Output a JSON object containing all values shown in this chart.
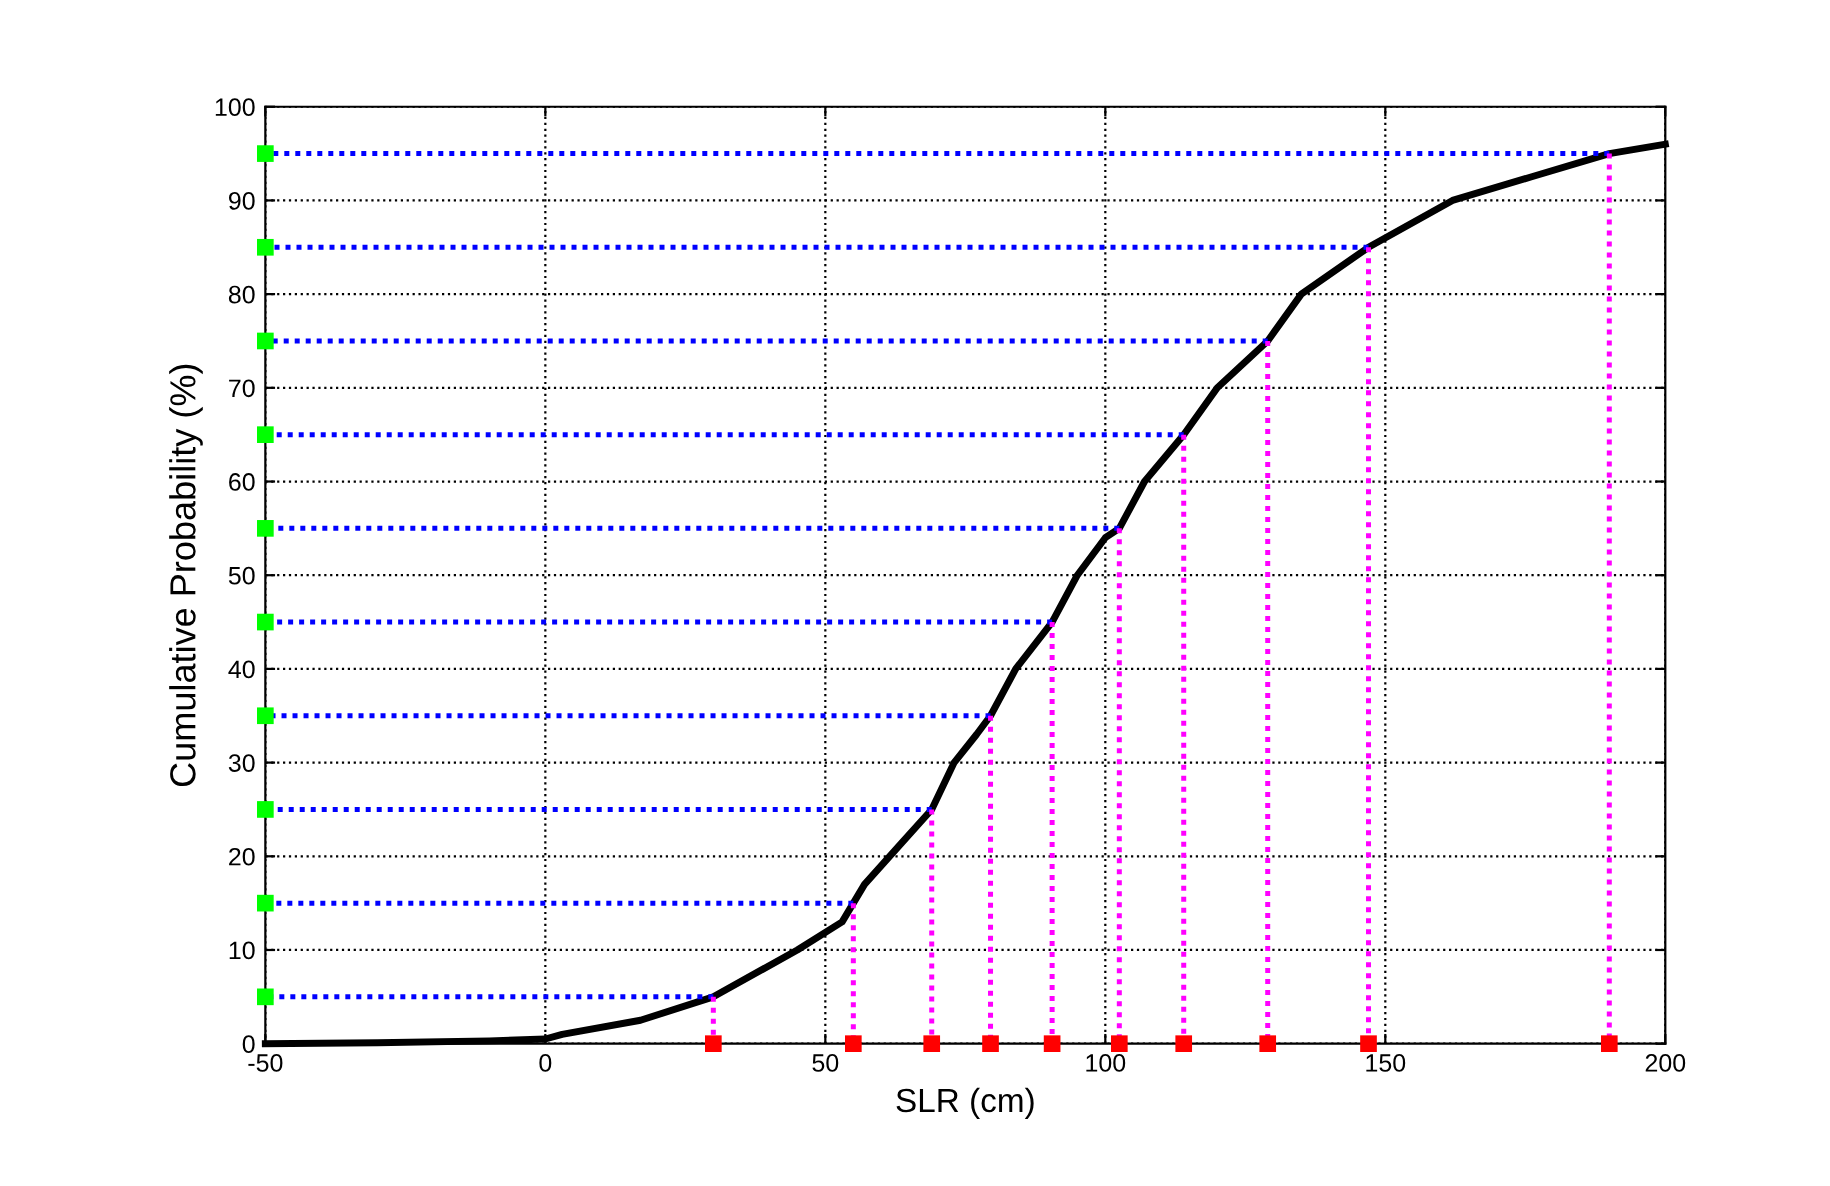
{
  "chart_data": {
    "type": "line",
    "xlabel": "SLR (cm)",
    "ylabel": "Cumulative Probability (%)",
    "xlim": [
      -50,
      200
    ],
    "xticks": [
      -50,
      0,
      50,
      100,
      150,
      200
    ],
    "ylim": [
      0,
      100
    ],
    "yticks": [
      0,
      10,
      20,
      30,
      40,
      50,
      60,
      70,
      80,
      90,
      100
    ],
    "grid": true,
    "series": [
      {
        "color": "#0000ff",
        "line_style": "dotted",
        "x": [
          30,
          -50
        ],
        "values": [
          5,
          5
        ]
      },
      {
        "color": "#0000ff",
        "line_style": "dotted",
        "x": [
          55,
          -50
        ],
        "values": [
          15,
          15
        ]
      },
      {
        "color": "#0000ff",
        "line_style": "dotted",
        "x": [
          69,
          -50
        ],
        "values": [
          25,
          25
        ]
      },
      {
        "color": "#0000ff",
        "line_style": "dotted",
        "x": [
          79.5,
          -50
        ],
        "values": [
          35,
          35
        ]
      },
      {
        "color": "#0000ff",
        "line_style": "dotted",
        "x": [
          90.5,
          -50
        ],
        "values": [
          45,
          45
        ]
      },
      {
        "color": "#0000ff",
        "line_style": "dotted",
        "x": [
          102.5,
          -50
        ],
        "values": [
          55,
          55
        ]
      },
      {
        "color": "#0000ff",
        "line_style": "dotted",
        "x": [
          114,
          -50
        ],
        "values": [
          65,
          65
        ]
      },
      {
        "color": "#0000ff",
        "line_style": "dotted",
        "x": [
          129,
          -50
        ],
        "values": [
          75,
          75
        ]
      },
      {
        "color": "#0000ff",
        "line_style": "dotted",
        "x": [
          147,
          -50
        ],
        "values": [
          85,
          85
        ]
      },
      {
        "color": "#0000ff",
        "line_style": "dotted",
        "x": [
          190,
          -50
        ],
        "values": [
          95,
          95
        ]
      },
      {
        "color": "#ff00ff",
        "line_style": "dotted",
        "x": [
          30,
          30
        ],
        "values": [
          5,
          0
        ]
      },
      {
        "color": "#ff00ff",
        "line_style": "dotted",
        "x": [
          55,
          55
        ],
        "values": [
          15,
          0
        ]
      },
      {
        "color": "#ff00ff",
        "line_style": "dotted",
        "x": [
          69,
          69
        ],
        "values": [
          25,
          0
        ]
      },
      {
        "color": "#ff00ff",
        "line_style": "dotted",
        "x": [
          79.5,
          79.5
        ],
        "values": [
          35,
          0
        ]
      },
      {
        "color": "#ff00ff",
        "line_style": "dotted",
        "x": [
          90.5,
          90.5
        ],
        "values": [
          45,
          0
        ]
      },
      {
        "color": "#ff00ff",
        "line_style": "dotted",
        "x": [
          102.5,
          102.5
        ],
        "values": [
          55,
          0
        ]
      },
      {
        "color": "#ff00ff",
        "line_style": "dotted",
        "x": [
          114,
          114
        ],
        "values": [
          65,
          0
        ]
      },
      {
        "color": "#ff00ff",
        "line_style": "dotted",
        "x": [
          129,
          129
        ],
        "values": [
          75,
          0
        ]
      },
      {
        "color": "#ff00ff",
        "line_style": "dotted",
        "x": [
          147,
          147
        ],
        "values": [
          85,
          0
        ]
      },
      {
        "color": "#ff00ff",
        "line_style": "dotted",
        "x": [
          190,
          190
        ],
        "values": [
          95,
          0
        ]
      },
      {
        "color": "#000000",
        "line_style": "solid",
        "x": [
          -50,
          -30,
          -10,
          0,
          3,
          17,
          30,
          45,
          53,
          55,
          57,
          63,
          69,
          73,
          77,
          79.5,
          84,
          90.5,
          95,
          100,
          102.5,
          107,
          114,
          120,
          129,
          135,
          147,
          162,
          176,
          190,
          200
        ],
        "values": [
          0,
          0.1,
          0.3,
          0.5,
          1,
          2.5,
          5,
          10,
          13,
          15,
          17,
          21,
          25,
          30,
          33,
          35,
          40,
          45,
          50,
          54,
          55,
          60,
          65,
          70,
          75,
          80,
          85,
          90,
          92.5,
          95,
          96
        ]
      },
      {
        "type": "scatter",
        "color": "#ff0000",
        "marker": "square",
        "x": [
          30,
          55,
          69,
          79.5,
          90.5,
          102.5,
          114,
          129,
          147,
          190
        ],
        "values": [
          0,
          0,
          0,
          0,
          0,
          0,
          0,
          0,
          0,
          0
        ]
      },
      {
        "type": "scatter",
        "color": "#00ff00",
        "marker": "square",
        "x": [
          -50,
          -50,
          -50,
          -50,
          -50,
          -50,
          -50,
          -50,
          -50,
          -50
        ],
        "values": [
          5,
          15,
          25,
          35,
          45,
          55,
          65,
          75,
          85,
          95
        ]
      }
    ]
  }
}
